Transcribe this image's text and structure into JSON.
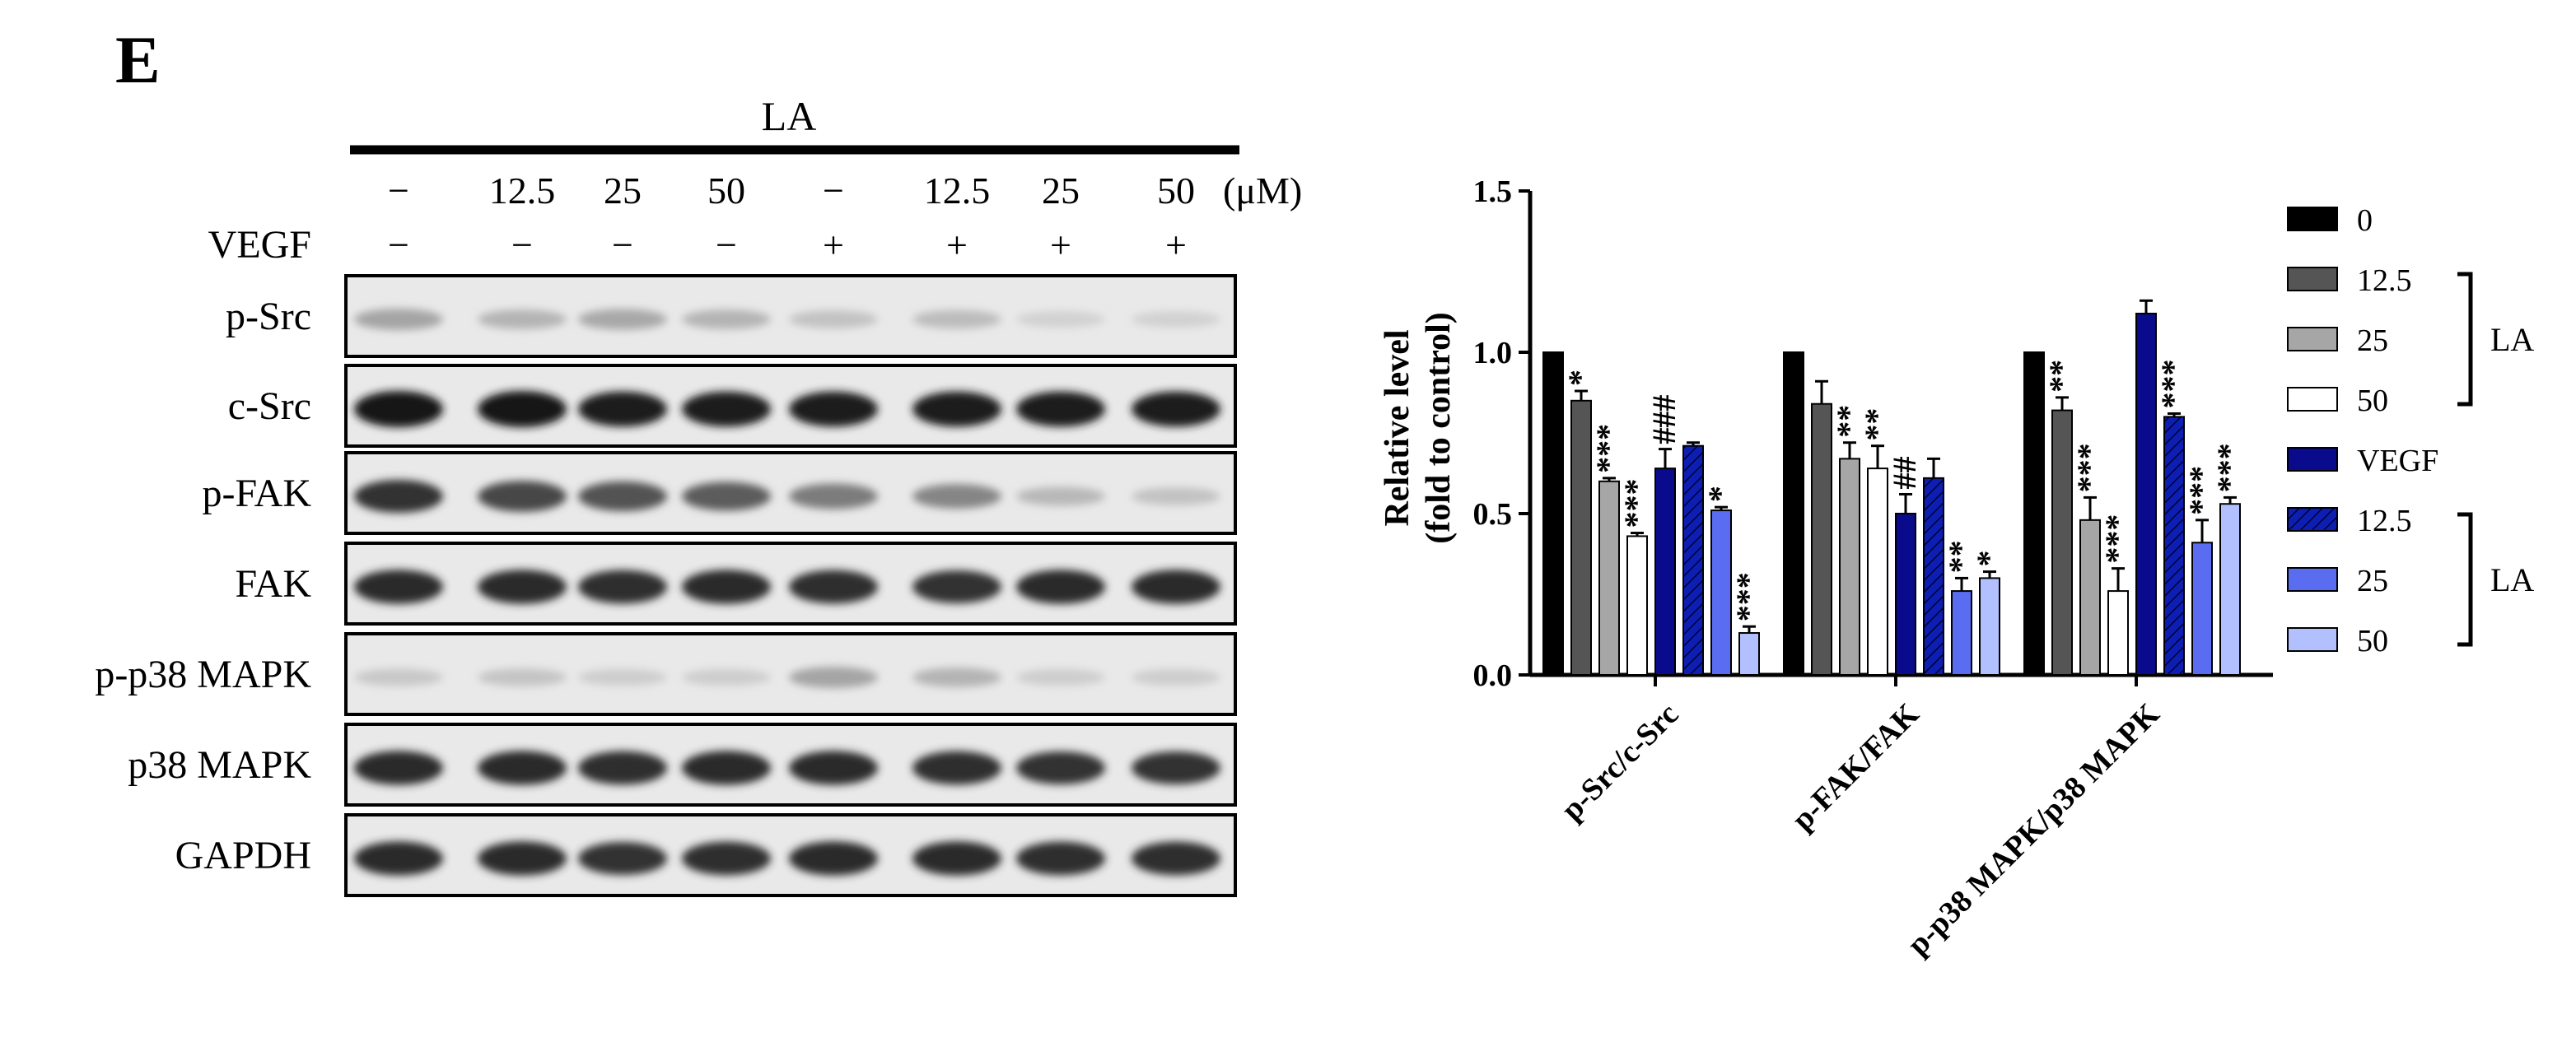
{
  "panel_label": "E",
  "blot": {
    "treatment_label": "LA",
    "unit": "(μM)",
    "vegf_label": "VEGF",
    "la_doses": [
      "−",
      "12.5",
      "25",
      "50",
      "−",
      "12.5",
      "25",
      "50"
    ],
    "vegf_signs": [
      "−",
      "−",
      "−",
      "−",
      "+",
      "+",
      "+",
      "+"
    ],
    "rows": [
      {
        "label": "p-Src",
        "intensity": [
          0.3,
          0.22,
          0.28,
          0.22,
          0.15,
          0.18,
          0.08,
          0.08
        ]
      },
      {
        "label": "c-Src",
        "intensity": [
          1.0,
          1.0,
          0.95,
          0.95,
          0.95,
          0.95,
          0.95,
          0.95
        ]
      },
      {
        "label": "p-FAK",
        "intensity": [
          0.85,
          0.75,
          0.7,
          0.65,
          0.5,
          0.45,
          0.2,
          0.15
        ]
      },
      {
        "label": "FAK",
        "intensity": [
          0.9,
          0.9,
          0.88,
          0.9,
          0.88,
          0.85,
          0.9,
          0.9
        ]
      },
      {
        "label": "p-p38 MAPK",
        "intensity": [
          0.12,
          0.14,
          0.1,
          0.1,
          0.3,
          0.22,
          0.1,
          0.1
        ]
      },
      {
        "label": "p38 MAPK",
        "intensity": [
          0.9,
          0.9,
          0.88,
          0.9,
          0.9,
          0.88,
          0.85,
          0.85
        ]
      },
      {
        "label": "GAPDH",
        "intensity": [
          0.9,
          0.9,
          0.85,
          0.88,
          0.9,
          0.9,
          0.88,
          0.88
        ]
      }
    ]
  },
  "chart_data": {
    "type": "bar",
    "title": "",
    "xlabel": "",
    "ylabel": [
      "Relative level",
      "(fold to control)"
    ],
    "ylim": [
      0,
      1.5
    ],
    "yticks": [
      "0.0",
      "0.5",
      "1.0",
      "1.5"
    ],
    "categories": [
      "p-Src/c-Src",
      "p-FAK/FAK",
      "p-p38 MAPK/p38 MAPK"
    ],
    "series": [
      {
        "name": "0",
        "color": "#000000",
        "pattern": "solid",
        "values": [
          1.0,
          1.0,
          1.0
        ],
        "errors": [
          0.0,
          0.0,
          0.0
        ],
        "marks": [
          "",
          "",
          ""
        ]
      },
      {
        "name": "12.5",
        "color": "#555555",
        "pattern": "solid",
        "values": [
          0.85,
          0.84,
          0.82
        ],
        "errors": [
          0.03,
          0.07,
          0.04
        ],
        "marks": [
          "*",
          "",
          "**"
        ]
      },
      {
        "name": "25",
        "color": "#a6a6a6",
        "pattern": "solid",
        "values": [
          0.6,
          0.67,
          0.48
        ],
        "errors": [
          0.01,
          0.05,
          0.07
        ],
        "marks": [
          "***",
          "**",
          "***"
        ]
      },
      {
        "name": "50",
        "color": "#ffffff",
        "pattern": "solid",
        "values": [
          0.43,
          0.64,
          0.26
        ],
        "errors": [
          0.01,
          0.07,
          0.07
        ],
        "marks": [
          "***",
          "**",
          "***"
        ]
      },
      {
        "name": "VEGF",
        "color": "#0a0a8c",
        "pattern": "solid",
        "values": [
          0.64,
          0.5,
          1.12
        ],
        "errors": [
          0.06,
          0.06,
          0.04
        ],
        "marks": [
          "###",
          "##",
          ""
        ]
      },
      {
        "name": "12.5",
        "color": "#0d1fb3",
        "pattern": "hatch",
        "values": [
          0.71,
          0.61,
          0.8
        ],
        "errors": [
          0.01,
          0.06,
          0.01
        ],
        "marks": [
          "",
          "",
          "***"
        ]
      },
      {
        "name": "25",
        "color": "#5a6cf0",
        "pattern": "solid",
        "values": [
          0.51,
          0.26,
          0.41
        ],
        "errors": [
          0.01,
          0.04,
          0.07
        ],
        "marks": [
          "*",
          "**",
          "***"
        ]
      },
      {
        "name": "50",
        "color": "#b3c0ff",
        "pattern": "solid",
        "values": [
          0.13,
          0.3,
          0.53
        ],
        "errors": [
          0.02,
          0.02,
          0.02
        ],
        "marks": [
          "***",
          "*",
          "***"
        ]
      }
    ],
    "legend_position": "right",
    "legend_brackets": [
      {
        "label": "LA",
        "from": 1,
        "to": 3
      },
      {
        "label": "LA",
        "from": 5,
        "to": 7
      }
    ],
    "grid": false
  }
}
